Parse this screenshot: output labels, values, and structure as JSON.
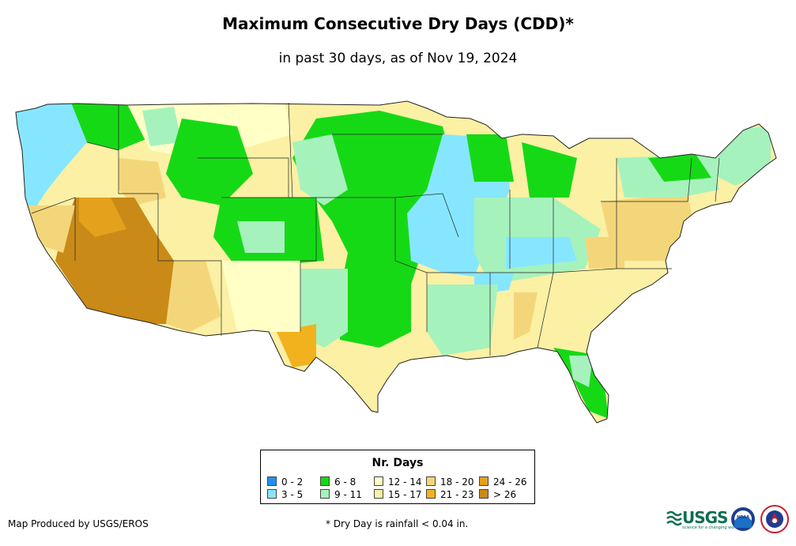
{
  "title": "Maximum Consecutive Dry Days (CDD)*",
  "subtitle": "in past 30 days, as of Nov 19, 2024",
  "legend": {
    "title": "Nr. Days",
    "items": [
      {
        "label": "0 - 2",
        "color": "#1e90ff"
      },
      {
        "label": "3 - 5",
        "color": "#87e6ff"
      },
      {
        "label": "6 - 8",
        "color": "#16d916"
      },
      {
        "label": "9 - 11",
        "color": "#a6f2bd"
      },
      {
        "label": "12 - 14",
        "color": "#ffffc6"
      },
      {
        "label": "15 - 17",
        "color": "#fbf0a4"
      },
      {
        "label": "18 - 20",
        "color": "#f4d67a"
      },
      {
        "label": "21 - 23",
        "color": "#f2b21e"
      },
      {
        "label": "24 - 26",
        "color": "#e4a11b"
      },
      {
        "label": "> 26",
        "color": "#c98a18"
      }
    ]
  },
  "credit": "Map Produced by USGS/EROS",
  "footnote": "* Dry Day is rainfall < 0.04 in.",
  "logos": {
    "usgs_text": "USGS",
    "usgs_tagline": "science for a changing world",
    "noaa_text": "NOAA"
  }
}
